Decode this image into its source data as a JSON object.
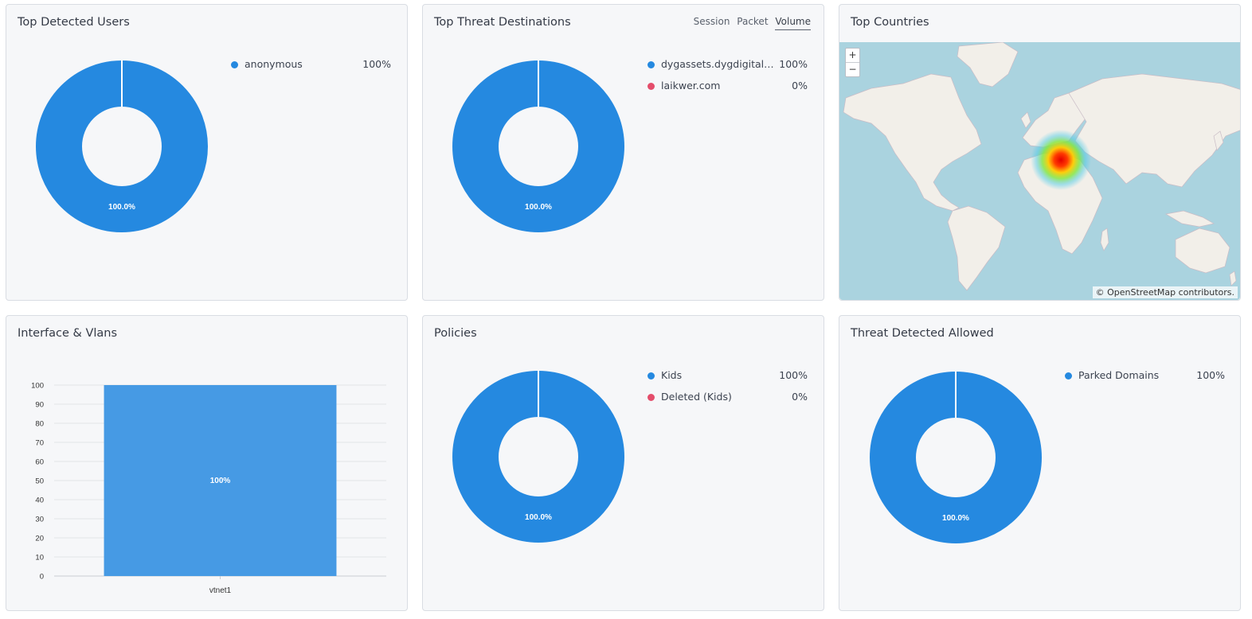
{
  "colors": {
    "blue": "#2589e0",
    "red": "#e44d6b",
    "bar": "#469ae4",
    "ocean": "#aad3df",
    "land": "#f2efe9"
  },
  "users": {
    "title": "Top Detected Users",
    "legend": [
      {
        "label": "anonymous",
        "value": "100%",
        "color": "#2589e0"
      }
    ],
    "slice_label": "100.0%"
  },
  "destinations": {
    "title": "Top Threat Destinations",
    "tabs": [
      {
        "label": "Session"
      },
      {
        "label": "Packet"
      },
      {
        "label": "Volume"
      }
    ],
    "active_tab": "Volume",
    "legend": [
      {
        "label": "dygassets.dygdigital.c...",
        "value": "100%",
        "color": "#2589e0"
      },
      {
        "label": "laikwer.com",
        "value": "0%",
        "color": "#e44d6b"
      }
    ],
    "slice_label": "100.0%"
  },
  "countries": {
    "title": "Top Countries",
    "zoom_in": "+",
    "zoom_out": "−",
    "attribution": "© OpenStreetMap contributors."
  },
  "interfaces": {
    "title": "Interface & Vlans"
  },
  "policies": {
    "title": "Policies",
    "legend": [
      {
        "label": "Kids",
        "value": "100%",
        "color": "#2589e0"
      },
      {
        "label": "Deleted (Kids)",
        "value": "0%",
        "color": "#e44d6b"
      }
    ],
    "slice_label": "100.0%"
  },
  "allowed": {
    "title": "Threat Detected Allowed",
    "legend": [
      {
        "label": "Parked Domains",
        "value": "100%",
        "color": "#2589e0"
      }
    ],
    "slice_label": "100.0%"
  },
  "chart_data": [
    {
      "type": "pie",
      "title": "Top Detected Users",
      "labels": [
        "anonymous"
      ],
      "values": [
        100.0
      ]
    },
    {
      "type": "pie",
      "title": "Top Threat Destinations",
      "labels": [
        "dygassets.dygdigital.c...",
        "laikwer.com"
      ],
      "values": [
        100.0,
        0.0
      ]
    },
    {
      "type": "bar",
      "title": "Interface & Vlans",
      "categories": [
        "vtnet1"
      ],
      "values": [
        100
      ],
      "data_labels": [
        "100%"
      ],
      "yticks": [
        "0",
        "10",
        "20",
        "30",
        "40",
        "50",
        "60",
        "70",
        "80",
        "90",
        "100"
      ],
      "ylim": [
        0,
        100
      ]
    },
    {
      "type": "pie",
      "title": "Policies",
      "labels": [
        "Kids",
        "Deleted (Kids)"
      ],
      "values": [
        100.0,
        0.0
      ]
    },
    {
      "type": "pie",
      "title": "Threat Detected Allowed",
      "labels": [
        "Parked Domains"
      ],
      "values": [
        100.0
      ]
    }
  ]
}
